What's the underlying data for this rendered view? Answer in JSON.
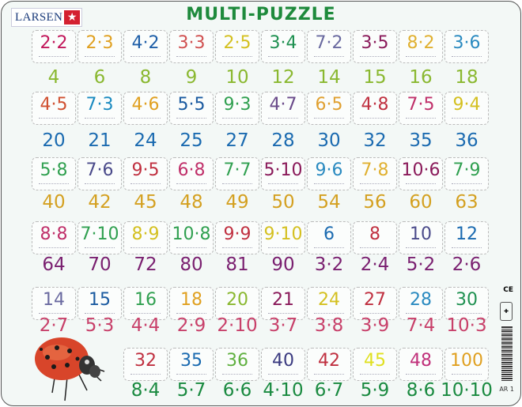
{
  "brand": {
    "name": "LARSEN",
    "mark": "★",
    "registered": "®"
  },
  "title": "MULTI-PUZZLE",
  "product_code": "AR 1",
  "ce_mark": "CE",
  "rows": [
    {
      "pieces": [
        {
          "t": "2·2",
          "c": "#c2185b"
        },
        {
          "t": "2·3",
          "c": "#e0a020"
        },
        {
          "t": "4·2",
          "c": "#1f5fa8"
        },
        {
          "t": "3·3",
          "c": "#d05050"
        },
        {
          "t": "2·5",
          "c": "#d4c020"
        },
        {
          "t": "3·4",
          "c": "#1e9050"
        },
        {
          "t": "7·2",
          "c": "#6a6aa0"
        },
        {
          "t": "3·5",
          "c": "#8a1a5a"
        },
        {
          "t": "8·2",
          "c": "#e0b030"
        },
        {
          "t": "3·6",
          "c": "#2a8ac0"
        }
      ],
      "answers": [
        {
          "t": "4",
          "c": "#8ab830"
        },
        {
          "t": "6",
          "c": "#8ab830"
        },
        {
          "t": "8",
          "c": "#8ab830"
        },
        {
          "t": "9",
          "c": "#8ab830"
        },
        {
          "t": "10",
          "c": "#8ab830"
        },
        {
          "t": "12",
          "c": "#8ab830"
        },
        {
          "t": "14",
          "c": "#8ab830"
        },
        {
          "t": "15",
          "c": "#8ab830"
        },
        {
          "t": "16",
          "c": "#8ab830"
        },
        {
          "t": "18",
          "c": "#8ab830"
        }
      ]
    },
    {
      "pieces": [
        {
          "t": "4·5",
          "c": "#d05030"
        },
        {
          "t": "7·3",
          "c": "#1a8ac0"
        },
        {
          "t": "4·6",
          "c": "#e0a020"
        },
        {
          "t": "5·5",
          "c": "#1a5aa0"
        },
        {
          "t": "9·3",
          "c": "#30a050"
        },
        {
          "t": "4·7",
          "c": "#6a4a8a"
        },
        {
          "t": "6·5",
          "c": "#e0a030"
        },
        {
          "t": "4·8",
          "c": "#c03040"
        },
        {
          "t": "7·5",
          "c": "#c0306a"
        },
        {
          "t": "9·4",
          "c": "#d4c020"
        }
      ],
      "answers": [
        {
          "t": "20",
          "c": "#1a6ab0"
        },
        {
          "t": "21",
          "c": "#1a6ab0"
        },
        {
          "t": "24",
          "c": "#1a6ab0"
        },
        {
          "t": "25",
          "c": "#1a6ab0"
        },
        {
          "t": "27",
          "c": "#1a6ab0"
        },
        {
          "t": "28",
          "c": "#1a6ab0"
        },
        {
          "t": "30",
          "c": "#1a6ab0"
        },
        {
          "t": "32",
          "c": "#1a6ab0"
        },
        {
          "t": "35",
          "c": "#1a6ab0"
        },
        {
          "t": "36",
          "c": "#1a6ab0"
        }
      ]
    },
    {
      "pieces": [
        {
          "t": "5·8",
          "c": "#30a050"
        },
        {
          "t": "7·6",
          "c": "#4a4a8a"
        },
        {
          "t": "9·5",
          "c": "#c03040"
        },
        {
          "t": "6·8",
          "c": "#c0306a"
        },
        {
          "t": "7·7",
          "c": "#30a050"
        },
        {
          "t": "5·10",
          "c": "#8a1a5a"
        },
        {
          "t": "9·6",
          "c": "#2a8ac0"
        },
        {
          "t": "7·8",
          "c": "#e0b030"
        },
        {
          "t": "10·6",
          "c": "#8a1a5a"
        },
        {
          "t": "7·9",
          "c": "#30a050"
        }
      ],
      "answers": [
        {
          "t": "40",
          "c": "#d4a020"
        },
        {
          "t": "42",
          "c": "#d4a020"
        },
        {
          "t": "45",
          "c": "#d4a020"
        },
        {
          "t": "48",
          "c": "#d4a020"
        },
        {
          "t": "49",
          "c": "#d4a020"
        },
        {
          "t": "50",
          "c": "#d4a020"
        },
        {
          "t": "54",
          "c": "#d4a020"
        },
        {
          "t": "56",
          "c": "#d4a020"
        },
        {
          "t": "60",
          "c": "#d4a020"
        },
        {
          "t": "63",
          "c": "#d4a020"
        }
      ]
    },
    {
      "pieces": [
        {
          "t": "8·8",
          "c": "#c0306a"
        },
        {
          "t": "7·10",
          "c": "#30a050"
        },
        {
          "t": "8·9",
          "c": "#d4c020"
        },
        {
          "t": "10·8",
          "c": "#30a050"
        },
        {
          "t": "9·9",
          "c": "#c03040"
        },
        {
          "t": "9·10",
          "c": "#d4c020"
        },
        {
          "t": "6",
          "c": "#1a6ab0"
        },
        {
          "t": "8",
          "c": "#c03040"
        },
        {
          "t": "10",
          "c": "#4a4a8a"
        },
        {
          "t": "12",
          "c": "#1a6ab0"
        }
      ],
      "answers": [
        {
          "t": "64",
          "c": "#7a2070"
        },
        {
          "t": "70",
          "c": "#7a2070"
        },
        {
          "t": "72",
          "c": "#7a2070"
        },
        {
          "t": "80",
          "c": "#7a2070"
        },
        {
          "t": "81",
          "c": "#7a2070"
        },
        {
          "t": "90",
          "c": "#7a2070"
        },
        {
          "t": "3·2",
          "c": "#7a2070"
        },
        {
          "t": "2·4",
          "c": "#7a2070"
        },
        {
          "t": "5·2",
          "c": "#7a2070"
        },
        {
          "t": "2·6",
          "c": "#7a2070"
        }
      ]
    },
    {
      "pieces": [
        {
          "t": "14",
          "c": "#6a6aa0"
        },
        {
          "t": "15",
          "c": "#1a5aa0"
        },
        {
          "t": "16",
          "c": "#30a050"
        },
        {
          "t": "18",
          "c": "#e0a020"
        },
        {
          "t": "20",
          "c": "#8ab830"
        },
        {
          "t": "21",
          "c": "#8a1a5a"
        },
        {
          "t": "24",
          "c": "#d4c020"
        },
        {
          "t": "27",
          "c": "#c03040"
        },
        {
          "t": "28",
          "c": "#2a8ac0"
        },
        {
          "t": "30",
          "c": "#1e9050"
        }
      ],
      "answers": [
        {
          "t": "2·7",
          "c": "#c8406a"
        },
        {
          "t": "5·3",
          "c": "#c8406a"
        },
        {
          "t": "4·4",
          "c": "#c8406a"
        },
        {
          "t": "2·9",
          "c": "#c8406a"
        },
        {
          "t": "2·10",
          "c": "#c8406a"
        },
        {
          "t": "3·7",
          "c": "#c8406a"
        },
        {
          "t": "3·8",
          "c": "#c8406a"
        },
        {
          "t": "3·9",
          "c": "#c8406a"
        },
        {
          "t": "7·4",
          "c": "#c8406a"
        },
        {
          "t": "10·3",
          "c": "#c8406a"
        }
      ]
    },
    {
      "pieces": [
        {
          "t": "32",
          "c": "#c03040"
        },
        {
          "t": "35",
          "c": "#1a6ab0"
        },
        {
          "t": "36",
          "c": "#60b040"
        },
        {
          "t": "40",
          "c": "#3a3a80"
        },
        {
          "t": "42",
          "c": "#c03040"
        },
        {
          "t": "45",
          "c": "#e0e020"
        },
        {
          "t": "48",
          "c": "#c0307a"
        },
        {
          "t": "100",
          "c": "#e0a020"
        }
      ],
      "answers": [
        {
          "t": "8·4",
          "c": "#1a8a40"
        },
        {
          "t": "5·7",
          "c": "#1a8a40"
        },
        {
          "t": "6·6",
          "c": "#1a8a40"
        },
        {
          "t": "4·10",
          "c": "#1a8a40"
        },
        {
          "t": "6·7",
          "c": "#1a8a40"
        },
        {
          "t": "5·9",
          "c": "#1a8a40"
        },
        {
          "t": "8·6",
          "c": "#1a8a40"
        },
        {
          "t": "10·10",
          "c": "#1a8a40"
        }
      ]
    }
  ]
}
